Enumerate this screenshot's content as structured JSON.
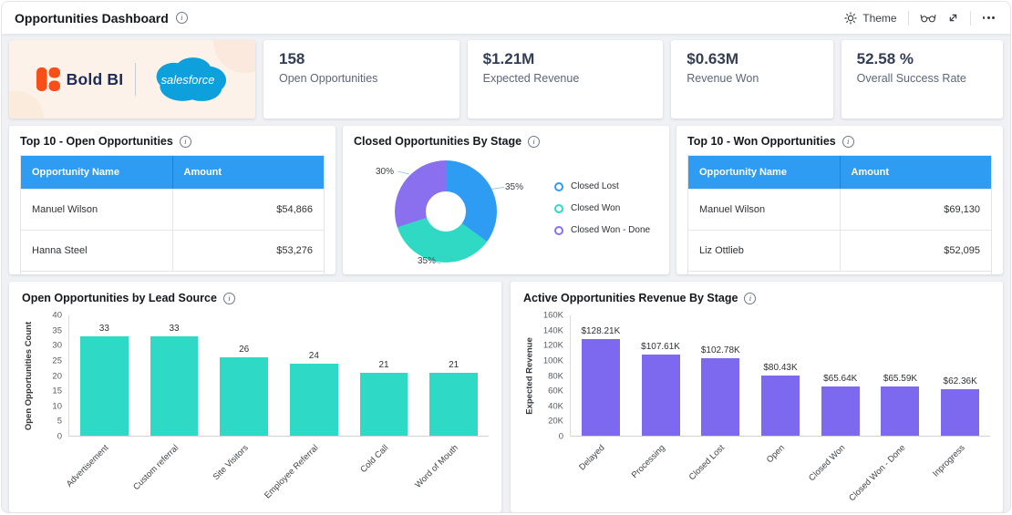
{
  "header": {
    "title": "Opportunities Dashboard",
    "theme_label": "Theme"
  },
  "branding": {
    "boldbi": "Bold BI",
    "salesforce": "salesforce"
  },
  "kpis": [
    {
      "value": "158",
      "label": "Open Opportunities"
    },
    {
      "value": "$1.21M",
      "label": "Expected Revenue"
    },
    {
      "value": "$0.63M",
      "label": "Revenue Won"
    },
    {
      "value": "52.58 %",
      "label": "Overall Success Rate"
    }
  ],
  "open_table": {
    "title": "Top 10 - Open Opportunities",
    "columns": [
      "Opportunity Name",
      "Amount"
    ],
    "rows": [
      {
        "name": "Manuel Wilson",
        "amount": "$54,866"
      },
      {
        "name": "Hanna Steel",
        "amount": "$53,276"
      }
    ]
  },
  "won_table": {
    "title": "Top 10 - Won Opportunities",
    "columns": [
      "Opportunity Name",
      "Amount"
    ],
    "rows": [
      {
        "name": "Manuel Wilson",
        "amount": "$69,130"
      },
      {
        "name": "Liz Ottlieb",
        "amount": "$52,095"
      }
    ]
  },
  "donut": {
    "title": "Closed Opportunities By Stage",
    "chart_data": {
      "type": "pie",
      "legend_position": "right",
      "slices": [
        {
          "label": "Closed Lost",
          "value": 35,
          "color": "#2f9cf3"
        },
        {
          "label": "Closed Won",
          "value": 35,
          "color": "#2fd9c4"
        },
        {
          "label": "Closed Won - Done",
          "value": 30,
          "color": "#8a70ee"
        }
      ],
      "display_labels": {
        "right": "35%",
        "bottom": "35%",
        "left": "30%"
      }
    }
  },
  "lead_chart": {
    "title": "Open Opportunities by Lead Source",
    "chart_data": {
      "type": "bar",
      "categories": [
        "Advertisement",
        "Custom referral",
        "Site Visitors",
        "Employee Referral",
        "Cold Call",
        "Word of Mouth"
      ],
      "values": [
        33,
        33,
        26,
        24,
        21,
        21
      ],
      "value_labels": [
        "33",
        "33",
        "26",
        "24",
        "21",
        "21"
      ],
      "ylabel": "Open Opportunities Count",
      "xlabel": "",
      "ylim": [
        0,
        40
      ],
      "ymax": 40,
      "yticks": [
        "40",
        "35",
        "30",
        "25",
        "20",
        "15",
        "10",
        "5",
        "0"
      ],
      "grid": false,
      "bar_color": "#2ed9c6"
    }
  },
  "revenue_chart": {
    "title": "Active Opportunities Revenue By Stage",
    "chart_data": {
      "type": "bar",
      "categories": [
        "Delayed",
        "Processing",
        "Closed Lost",
        "Open",
        "Closed Won",
        "Closed Won - Done",
        "Inprogress"
      ],
      "values": [
        128210,
        107610,
        102780,
        80430,
        65640,
        65590,
        62360
      ],
      "value_labels": [
        "$128.21K",
        "$107.61K",
        "$102.78K",
        "$80.43K",
        "$65.64K",
        "$65.59K",
        "$62.36K"
      ],
      "ylabel": "Expected Revenue",
      "xlabel": "",
      "ylim": [
        0,
        160000
      ],
      "ymax": 160000,
      "yticks": [
        "160K",
        "140K",
        "120K",
        "100K",
        "80K",
        "60K",
        "40K",
        "20K",
        "0"
      ],
      "grid": false,
      "bar_color": "#7d68f0"
    }
  }
}
